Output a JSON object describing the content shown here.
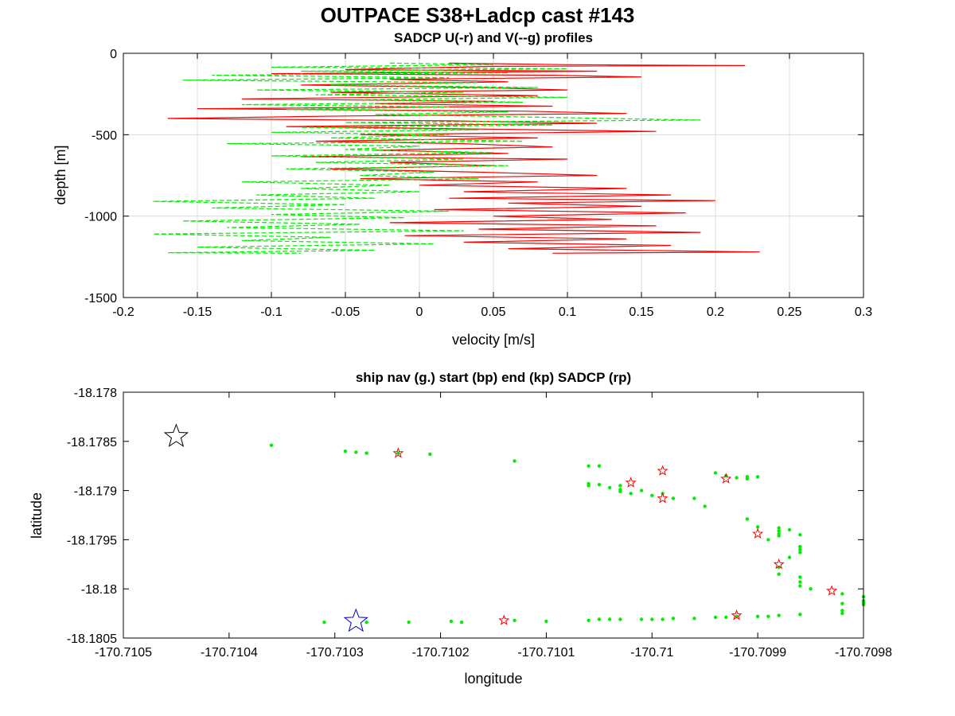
{
  "figure": {
    "title": "OUTPACE S38+Ladcp cast #143"
  },
  "chart_data": [
    {
      "type": "line",
      "title": "SADCP U(-r) and V(--g) profiles",
      "xlabel": "velocity [m/s]",
      "ylabel": "depth [m]",
      "xlim": [
        -0.2,
        0.3
      ],
      "ylim": [
        -1500,
        0
      ],
      "xticks": [
        -0.2,
        -0.15,
        -0.1,
        -0.05,
        0,
        0.05,
        0.1,
        0.15,
        0.2,
        0.25,
        0.3
      ],
      "xtick_labels": [
        "-0.2",
        "-0.15",
        "-0.1",
        "-0.05",
        "0",
        "0.05",
        "0.1",
        "0.15",
        "0.2",
        "0.25",
        "0.3"
      ],
      "yticks": [
        -1500,
        -1000,
        -500,
        0
      ],
      "ytick_labels": [
        "-1500",
        "-1000",
        "-500",
        "0"
      ],
      "grid": true,
      "series": [
        {
          "color": "#ff0000",
          "style": "solid",
          "points": [
            [
              0.02,
              -60
            ],
            [
              0.1,
              -70
            ],
            [
              0.22,
              -75
            ],
            [
              0.05,
              -80
            ],
            [
              -0.05,
              -100
            ],
            [
              0.12,
              -110
            ],
            [
              -0.1,
              -125
            ],
            [
              0.09,
              -135
            ],
            [
              0.15,
              -145
            ],
            [
              -0.02,
              -160
            ],
            [
              0.06,
              -175
            ],
            [
              -0.08,
              -195
            ],
            [
              0.04,
              -210
            ],
            [
              0.1,
              -225
            ],
            [
              -0.06,
              -240
            ],
            [
              0.08,
              -260
            ],
            [
              -0.12,
              -280
            ],
            [
              0.05,
              -295
            ],
            [
              -0.03,
              -310
            ],
            [
              0.09,
              -325
            ],
            [
              -0.15,
              -340
            ],
            [
              0.07,
              -355
            ],
            [
              0.14,
              -370
            ],
            [
              -0.05,
              -385
            ],
            [
              -0.17,
              -400
            ],
            [
              0.02,
              -415
            ],
            [
              0.12,
              -430
            ],
            [
              -0.09,
              -450
            ],
            [
              0.04,
              -465
            ],
            [
              0.16,
              -480
            ],
            [
              -0.04,
              -500
            ],
            [
              0.08,
              -520
            ],
            [
              -0.07,
              -540
            ],
            [
              0.03,
              -555
            ],
            [
              0.09,
              -575
            ],
            [
              -0.03,
              -595
            ],
            [
              0.06,
              -615
            ],
            [
              -0.08,
              -635
            ],
            [
              0.1,
              -650
            ],
            [
              -0.02,
              -670
            ],
            [
              0.05,
              -690
            ],
            [
              -0.06,
              -710
            ],
            [
              0.04,
              -730
            ],
            [
              0.12,
              -750
            ],
            [
              -0.04,
              -770
            ],
            [
              0.08,
              -790
            ],
            [
              0.0,
              -810
            ],
            [
              0.14,
              -830
            ],
            [
              0.03,
              -850
            ],
            [
              0.17,
              -870
            ],
            [
              0.02,
              -890
            ],
            [
              0.2,
              -905
            ],
            [
              0.06,
              -920
            ],
            [
              0.15,
              -940
            ],
            [
              0.01,
              -960
            ],
            [
              0.18,
              -980
            ],
            [
              0.05,
              -1000
            ],
            [
              0.13,
              -1020
            ],
            [
              -0.02,
              -1040
            ],
            [
              0.16,
              -1060
            ],
            [
              0.04,
              -1080
            ],
            [
              0.19,
              -1100
            ],
            [
              -0.01,
              -1120
            ],
            [
              0.14,
              -1140
            ],
            [
              0.03,
              -1160
            ],
            [
              0.17,
              -1180
            ],
            [
              0.06,
              -1200
            ],
            [
              0.23,
              -1220
            ],
            [
              0.09,
              -1228
            ]
          ]
        },
        {
          "color": "#00ee00",
          "style": "dashed",
          "points": [
            [
              -0.02,
              -60
            ],
            [
              0.05,
              -70
            ],
            [
              -0.1,
              -85
            ],
            [
              0.1,
              -95
            ],
            [
              -0.08,
              -110
            ],
            [
              0.06,
              -120
            ],
            [
              -0.14,
              -135
            ],
            [
              0.02,
              -150
            ],
            [
              -0.16,
              -165
            ],
            [
              0.04,
              -180
            ],
            [
              -0.06,
              -195
            ],
            [
              0.08,
              -210
            ],
            [
              -0.11,
              -225
            ],
            [
              0.03,
              -240
            ],
            [
              -0.07,
              -255
            ],
            [
              0.1,
              -270
            ],
            [
              -0.04,
              -285
            ],
            [
              0.07,
              -300
            ],
            [
              -0.12,
              -315
            ],
            [
              0.02,
              -330
            ],
            [
              -0.09,
              -345
            ],
            [
              0.06,
              -360
            ],
            [
              -0.03,
              -375
            ],
            [
              0.19,
              -410
            ],
            [
              -0.05,
              -425
            ],
            [
              0.09,
              -440
            ],
            [
              -0.08,
              -455
            ],
            [
              0.04,
              -470
            ],
            [
              -0.1,
              -485
            ],
            [
              0.02,
              -500
            ],
            [
              -0.06,
              -520
            ],
            [
              0.07,
              -540
            ],
            [
              -0.13,
              -555
            ],
            [
              0.0,
              -570
            ],
            [
              -0.05,
              -590
            ],
            [
              0.05,
              -610
            ],
            [
              -0.1,
              -630
            ],
            [
              0.03,
              -650
            ],
            [
              -0.07,
              -670
            ],
            [
              0.06,
              -690
            ],
            [
              -0.09,
              -710
            ],
            [
              0.01,
              -730
            ],
            [
              -0.04,
              -750
            ],
            [
              0.04,
              -770
            ],
            [
              -0.12,
              -790
            ],
            [
              -0.02,
              -810
            ],
            [
              -0.08,
              -830
            ],
            [
              0.0,
              -850
            ],
            [
              -0.11,
              -870
            ],
            [
              -0.03,
              -890
            ],
            [
              -0.18,
              -910
            ],
            [
              -0.05,
              -930
            ],
            [
              -0.14,
              -950
            ],
            [
              0.02,
              -970
            ],
            [
              -0.1,
              -990
            ],
            [
              -0.01,
              -1010
            ],
            [
              -0.16,
              -1030
            ],
            [
              -0.04,
              -1050
            ],
            [
              -0.13,
              -1070
            ],
            [
              0.03,
              -1090
            ],
            [
              -0.18,
              -1110
            ],
            [
              -0.06,
              -1130
            ],
            [
              -0.12,
              -1150
            ],
            [
              0.01,
              -1170
            ],
            [
              -0.15,
              -1190
            ],
            [
              -0.03,
              -1210
            ],
            [
              -0.17,
              -1225
            ],
            [
              -0.08,
              -1228
            ]
          ]
        }
      ]
    },
    {
      "type": "scatter",
      "title": "ship nav (g.) start (bp) end (kp) SADCP (rp)",
      "xlabel": "longitude",
      "ylabel": "latitude",
      "xlim": [
        -170.7105,
        -170.7098
      ],
      "ylim": [
        -18.1805,
        -18.178
      ],
      "xticks": [
        -170.7105,
        -170.7104,
        -170.7103,
        -170.7102,
        -170.7101,
        -170.71,
        -170.7099,
        -170.7098
      ],
      "xtick_labels": [
        "-170.7105",
        "-170.7104",
        "-170.7103",
        "-170.7102",
        "-170.7101",
        "-170.71",
        "-170.7099",
        "-170.7098"
      ],
      "yticks": [
        -18.1805,
        -18.18,
        -18.1795,
        -18.179,
        -18.1785,
        -18.178
      ],
      "ytick_labels": [
        "-18.1805",
        "-18.18",
        "-18.1795",
        "-18.179",
        "-18.1785",
        "-18.178"
      ],
      "grid": false,
      "series": [
        {
          "marker": "dot",
          "color": "#00ee00",
          "points": [
            [
              -170.71036,
              -18.17854
            ],
            [
              -170.71029,
              -18.1786
            ],
            [
              -170.71028,
              -18.17861
            ],
            [
              -170.71027,
              -18.17862
            ],
            [
              -170.71024,
              -18.17862
            ],
            [
              -170.71021,
              -18.17863
            ],
            [
              -170.71013,
              -18.1787
            ],
            [
              -170.71006,
              -18.17875
            ],
            [
              -170.71005,
              -18.17875
            ],
            [
              -170.71006,
              -18.17893
            ],
            [
              -170.71006,
              -18.17895
            ],
            [
              -170.71005,
              -18.17894
            ],
            [
              -170.71004,
              -18.17897
            ],
            [
              -170.71003,
              -18.17895
            ],
            [
              -170.71003,
              -18.17899
            ],
            [
              -170.71003,
              -18.17901
            ],
            [
              -170.71002,
              -18.17903
            ],
            [
              -170.71001,
              -18.179
            ],
            [
              -170.71,
              -18.17905
            ],
            [
              -170.70999,
              -18.17903
            ],
            [
              -170.70998,
              -18.17908
            ],
            [
              -170.70996,
              -18.17908
            ],
            [
              -170.70995,
              -18.17916
            ],
            [
              -170.70994,
              -18.17882
            ],
            [
              -170.70993,
              -18.17885
            ],
            [
              -170.70992,
              -18.17887
            ],
            [
              -170.70991,
              -18.17888
            ],
            [
              -170.7099,
              -18.17886
            ],
            [
              -170.70991,
              -18.17886
            ],
            [
              -170.70991,
              -18.17929
            ],
            [
              -170.7099,
              -18.17937
            ],
            [
              -170.70989,
              -18.1795
            ],
            [
              -170.70988,
              -18.17938
            ],
            [
              -170.70988,
              -18.17941
            ],
            [
              -170.70988,
              -18.17944
            ],
            [
              -170.70988,
              -18.17946
            ],
            [
              -170.70987,
              -18.1794
            ],
            [
              -170.70986,
              -18.17945
            ],
            [
              -170.70986,
              -18.17957
            ],
            [
              -170.70986,
              -18.1796
            ],
            [
              -170.70986,
              -18.17963
            ],
            [
              -170.70987,
              -18.17968
            ],
            [
              -170.70988,
              -18.17978
            ],
            [
              -170.70988,
              -18.17985
            ],
            [
              -170.70986,
              -18.17988
            ],
            [
              -170.70986,
              -18.17993
            ],
            [
              -170.70986,
              -18.17997
            ],
            [
              -170.70985,
              -18.18
            ],
            [
              -170.70982,
              -18.18005
            ],
            [
              -170.70982,
              -18.18022
            ],
            [
              -170.7098,
              -18.18008
            ],
            [
              -170.7098,
              -18.18012
            ],
            [
              -170.7098,
              -18.18014
            ],
            [
              -170.7098,
              -18.18016
            ],
            [
              -170.70982,
              -18.18015
            ],
            [
              -170.70982,
              -18.18025
            ],
            [
              -170.71031,
              -18.18034
            ],
            [
              -170.71027,
              -18.18034
            ],
            [
              -170.71023,
              -18.18034
            ],
            [
              -170.71019,
              -18.18033
            ],
            [
              -170.71018,
              -18.18034
            ],
            [
              -170.71013,
              -18.18032
            ],
            [
              -170.7101,
              -18.18033
            ],
            [
              -170.71006,
              -18.18032
            ],
            [
              -170.71005,
              -18.18031
            ],
            [
              -170.71004,
              -18.18031
            ],
            [
              -170.71003,
              -18.18031
            ],
            [
              -170.71001,
              -18.18031
            ],
            [
              -170.71,
              -18.18031
            ],
            [
              -170.70999,
              -18.18031
            ],
            [
              -170.70998,
              -18.1803
            ],
            [
              -170.70996,
              -18.1803
            ],
            [
              -170.70994,
              -18.18029
            ],
            [
              -170.70993,
              -18.18029
            ],
            [
              -170.70992,
              -18.18028
            ],
            [
              -170.7099,
              -18.18028
            ],
            [
              -170.70989,
              -18.18028
            ],
            [
              -170.70988,
              -18.18027
            ],
            [
              -170.70986,
              -18.18026
            ]
          ]
        },
        {
          "marker": "star",
          "color": "#ff0000",
          "points": [
            [
              -170.71024,
              -18.17862
            ],
            [
              -170.71002,
              -18.17892
            ],
            [
              -170.70999,
              -18.1788
            ],
            [
              -170.70999,
              -18.17908
            ],
            [
              -170.70993,
              -18.17888
            ],
            [
              -170.7099,
              -18.17944
            ],
            [
              -170.70988,
              -18.17975
            ],
            [
              -170.70983,
              -18.18002
            ],
            [
              -170.71014,
              -18.18032
            ],
            [
              -170.70992,
              -18.18027
            ]
          ]
        },
        {
          "marker": "star",
          "color": "#000000",
          "points": [
            [
              -170.71045,
              -18.17845
            ]
          ]
        },
        {
          "marker": "star",
          "color": "#0000cc",
          "points": [
            [
              -170.71028,
              -18.18033
            ]
          ]
        }
      ]
    }
  ]
}
